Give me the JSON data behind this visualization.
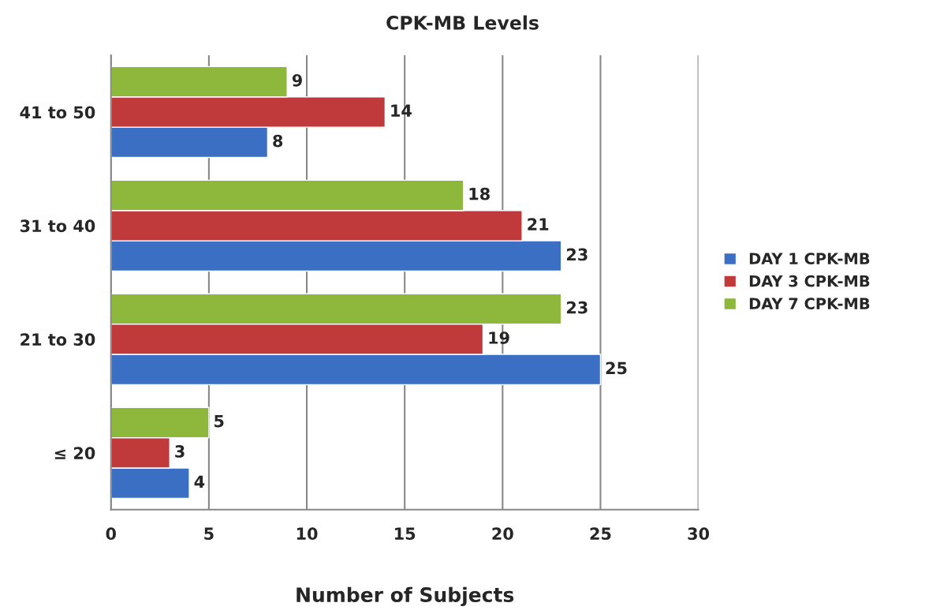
{
  "chart_data": {
    "type": "bar",
    "orientation": "horizontal",
    "title": "CPK-MB Levels",
    "xlabel": "Number of Subjects",
    "categories": [
      "41 to 50",
      "31 to 40",
      "21 to 30",
      "≤ 20"
    ],
    "series": [
      {
        "name": "DAY 1 CPK-MB",
        "color": "#3a6fc4",
        "values": [
          8,
          23,
          25,
          4
        ]
      },
      {
        "name": "DAY 3 CPK-MB",
        "color": "#c0393b",
        "values": [
          14,
          21,
          19,
          3
        ]
      },
      {
        "name": "DAY 7 CPK-MB",
        "color": "#8db83b",
        "values": [
          9,
          18,
          23,
          5
        ]
      }
    ],
    "xlim": [
      0,
      30
    ],
    "xticks": [
      0,
      5,
      10,
      15,
      20,
      25,
      30
    ],
    "grid": "x",
    "legend": "right",
    "data_labels": true
  }
}
